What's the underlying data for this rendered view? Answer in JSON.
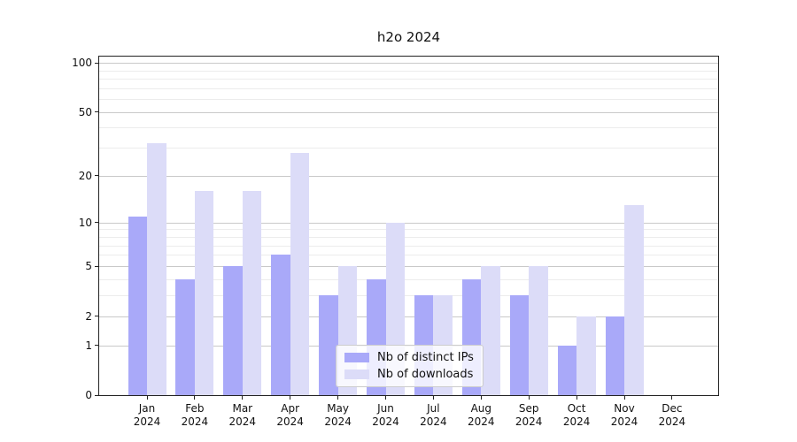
{
  "page": {
    "background": "#ffffff"
  },
  "chart_data": {
    "type": "bar",
    "title": "h2o 2024",
    "categories": [
      "Jan 2024",
      "Feb 2024",
      "Mar 2024",
      "Apr 2024",
      "May 2024",
      "Jun 2024",
      "Jul 2024",
      "Aug 2024",
      "Sep 2024",
      "Oct 2024",
      "Nov 2024",
      "Dec 2024"
    ],
    "series": [
      {
        "name": "Nb of distinct IPs",
        "color": "#a9a9f9",
        "values": [
          11,
          4,
          5,
          6,
          3,
          4,
          3,
          4,
          3,
          1,
          2,
          0
        ]
      },
      {
        "name": "Nb of downloads",
        "color": "#dcdcf8",
        "values": [
          32,
          16,
          16,
          28,
          5,
          10,
          3,
          5,
          5,
          2,
          13,
          0
        ]
      }
    ],
    "xlabel": "",
    "ylabel": "",
    "y_axis": {
      "scale": "log1p",
      "major_ticks": [
        0,
        1,
        2,
        5,
        10,
        20,
        50,
        100
      ],
      "minor_gridlines": [
        3,
        4,
        6,
        7,
        8,
        9,
        30,
        40,
        60,
        70,
        80,
        90
      ],
      "top_value": 109
    },
    "ylim": [
      0,
      109
    ],
    "grid": {
      "on": true,
      "major_color": "#c9c9c9",
      "minor_color": "#ececec"
    },
    "legend": {
      "position": "lower center"
    },
    "spine_color": "#222222"
  }
}
